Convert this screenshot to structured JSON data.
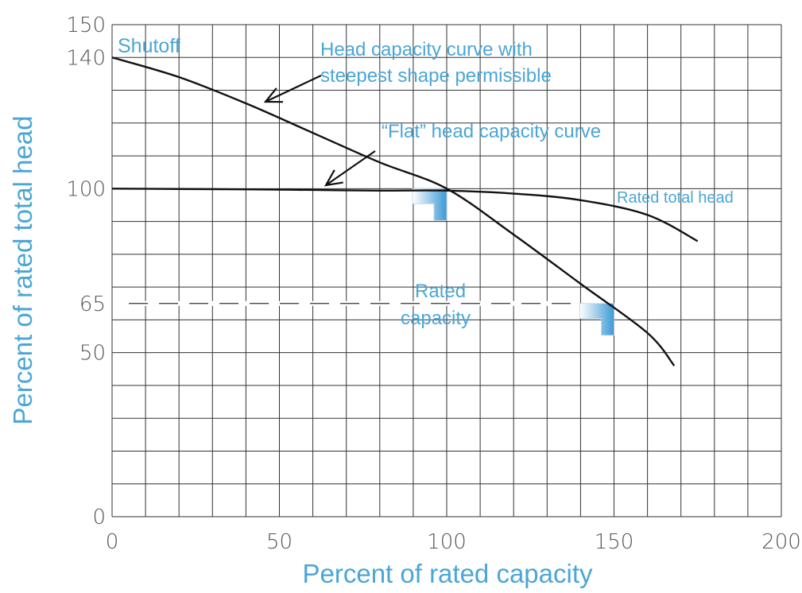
{
  "chart_data": {
    "type": "line",
    "xlabel": "Percent of rated capacity",
    "ylabel": "Percent of rated total head",
    "xlim": [
      0,
      200
    ],
    "ylim": [
      0,
      150
    ],
    "x_ticks": [
      "0",
      "50",
      "100",
      "150",
      "200"
    ],
    "y_ticks": [
      "0",
      "50",
      "65",
      "100",
      "140",
      "150"
    ],
    "grid": true,
    "grid_x_step": 10,
    "grid_y_step": 10,
    "series": [
      {
        "x": [
          0,
          20,
          40,
          60,
          80,
          100,
          120,
          140,
          160,
          168
        ],
        "y": [
          140,
          134,
          126,
          117,
          108,
          100,
          86,
          71,
          56,
          46
        ]
      },
      {
        "x": [
          0,
          20,
          40,
          60,
          80,
          100,
          120,
          140,
          160,
          175
        ],
        "y": [
          100,
          99.9,
          99.8,
          99.6,
          99.4,
          99.4,
          98.5,
          96.5,
          92,
          84
        ]
      }
    ],
    "reference_line": {
      "y": 65,
      "style": "dashed"
    },
    "annotations": {
      "shutoff": "Shutoff",
      "steep_line1": "Head capacity curve with",
      "steep_line2": "steepest shape permissible",
      "flat": "“Flat” head capacity curve",
      "rated_head": "Rated total head",
      "rated_cap_line1": "Rated",
      "rated_cap_line2": "capacity"
    },
    "colors": {
      "grid": "#333333",
      "curve": "#111111",
      "label": "#4aa6d6",
      "tick": "#555555"
    }
  }
}
